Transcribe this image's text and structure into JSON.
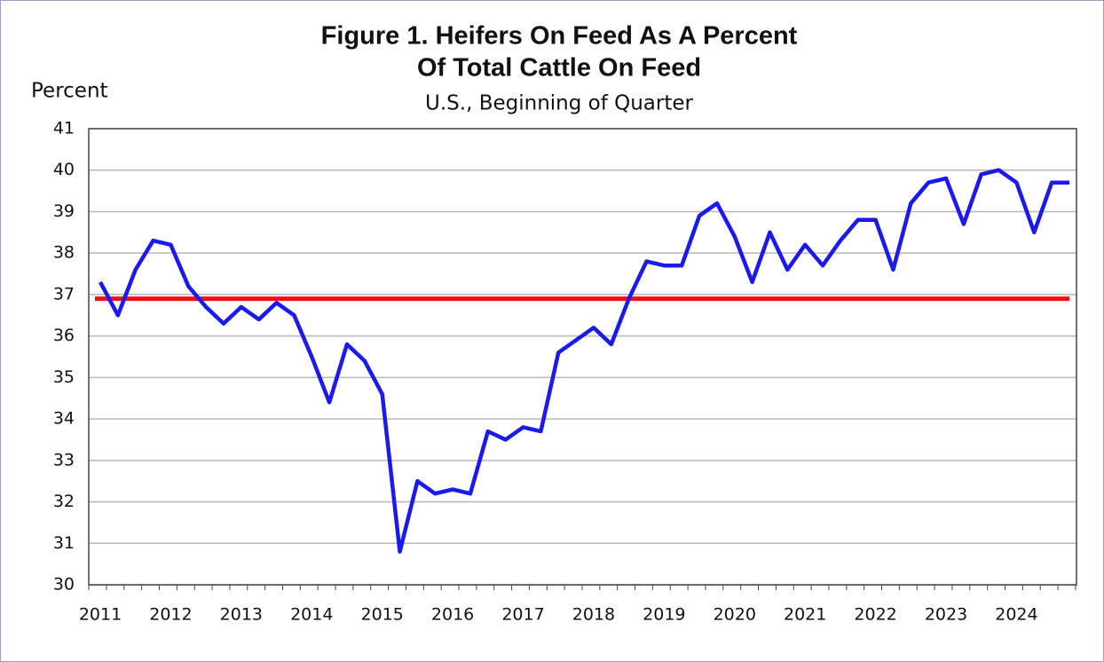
{
  "chart_data": {
    "type": "line",
    "title": [
      "Figure 1. Heifers On Feed As A Percent",
      "Of Total Cattle On Feed"
    ],
    "subtitle": "U.S., Beginning of Quarter",
    "y_axis_label": "Percent",
    "categories": [
      "2011",
      null,
      null,
      null,
      "2012",
      null,
      null,
      null,
      "2013",
      null,
      null,
      null,
      "2014",
      null,
      null,
      null,
      "2015",
      null,
      null,
      null,
      "2016",
      null,
      null,
      null,
      "2017",
      null,
      null,
      null,
      "2018",
      null,
      null,
      null,
      "2019",
      null,
      null,
      null,
      "2020",
      null,
      null,
      null,
      "2021",
      null,
      null,
      null,
      "2022",
      null,
      null,
      null,
      "2023",
      null,
      null,
      null,
      "2024",
      null,
      null,
      null
    ],
    "series": [
      {
        "color": "#1a1aee",
        "values": [
          37.3,
          36.5,
          37.6,
          38.3,
          38.2,
          37.2,
          36.7,
          36.3,
          36.7,
          36.4,
          36.8,
          36.5,
          35.5,
          34.4,
          35.8,
          35.4,
          34.6,
          30.8,
          32.5,
          32.2,
          32.3,
          32.2,
          33.7,
          33.5,
          33.8,
          33.7,
          35.6,
          35.9,
          36.2,
          35.8,
          36.9,
          37.8,
          37.7,
          37.7,
          38.9,
          39.2,
          38.4,
          37.3,
          38.5,
          37.6,
          38.2,
          37.7,
          38.3,
          38.8,
          38.8,
          37.6,
          39.2,
          39.7,
          39.8,
          38.7,
          39.9,
          40.0,
          39.7,
          38.5,
          39.7,
          39.7
        ]
      }
    ],
    "reference_line": {
      "value": 36.9,
      "color": "#ee1111"
    },
    "ylim": [
      30,
      41
    ],
    "yticks": [
      30,
      31,
      32,
      33,
      34,
      35,
      36,
      37,
      38,
      39,
      40,
      41
    ],
    "grid": true
  }
}
